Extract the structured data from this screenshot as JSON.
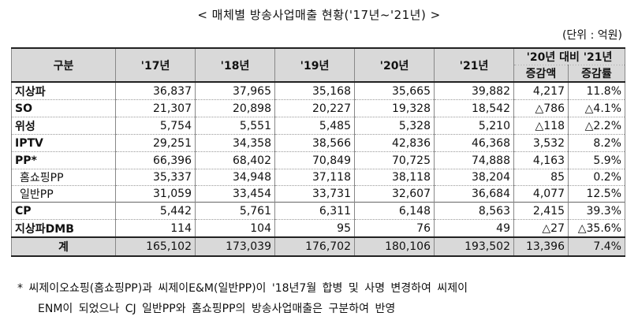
{
  "title": "< 매체별 방송사업매출 현황('17년~'21년) >",
  "unit": "(단위 : 억원)",
  "headers": {
    "category": "구분",
    "years": [
      "'17년",
      "'18년",
      "'19년",
      "'20년",
      "'21년"
    ],
    "compare": "'20년 대비 '21년",
    "change_amount": "증감액",
    "change_rate": "증감률"
  },
  "rows": [
    {
      "label": "지상파",
      "values": [
        "36,837",
        "37,965",
        "35,168",
        "35,665",
        "39,882"
      ],
      "amount": "4,217",
      "rate": "11.8%"
    },
    {
      "label": "SO",
      "values": [
        "21,307",
        "20,898",
        "20,227",
        "19,328",
        "18,542"
      ],
      "amount": "△786",
      "rate": "△4.1%"
    },
    {
      "label": "위성",
      "values": [
        "5,754",
        "5,551",
        "5,485",
        "5,328",
        "5,210"
      ],
      "amount": "△118",
      "rate": "△2.2%"
    },
    {
      "label": "IPTV",
      "values": [
        "29,251",
        "34,358",
        "38,566",
        "42,836",
        "46,368"
      ],
      "amount": "3,532",
      "rate": "8.2%"
    },
    {
      "label": "PP*",
      "values": [
        "66,396",
        "68,402",
        "70,849",
        "70,725",
        "74,888"
      ],
      "amount": "4,163",
      "rate": "5.9%"
    },
    {
      "label": "홈쇼핑PP",
      "values": [
        "35,337",
        "34,948",
        "37,118",
        "38,118",
        "38,204"
      ],
      "amount": "85",
      "rate": "0.2%"
    },
    {
      "label": "일반PP",
      "values": [
        "31,059",
        "33,454",
        "33,731",
        "32,607",
        "36,684"
      ],
      "amount": "4,077",
      "rate": "12.5%"
    },
    {
      "label": "CP",
      "values": [
        "5,442",
        "5,761",
        "6,311",
        "6,148",
        "8,563"
      ],
      "amount": "2,415",
      "rate": "39.3%"
    },
    {
      "label": "지상파DMB",
      "values": [
        "114",
        "104",
        "95",
        "76",
        "49"
      ],
      "amount": "△27",
      "rate": "△35.6%"
    }
  ],
  "total": {
    "label": "계",
    "values": [
      "165,102",
      "173,039",
      "176,702",
      "180,106",
      "193,502"
    ],
    "amount": "13,396",
    "rate": "7.4%"
  },
  "footnote": {
    "line1": "* 씨제이오쇼핑(홈쇼핑PP)과 씨제이E&M(일반PP)이 '18년7월 합병 및 사명 변경하여 씨제이",
    "line2": "ENM이 되었으나 CJ 일반PP와 홈쇼핑PP의 방송사업매출은 구분하여 반영"
  }
}
